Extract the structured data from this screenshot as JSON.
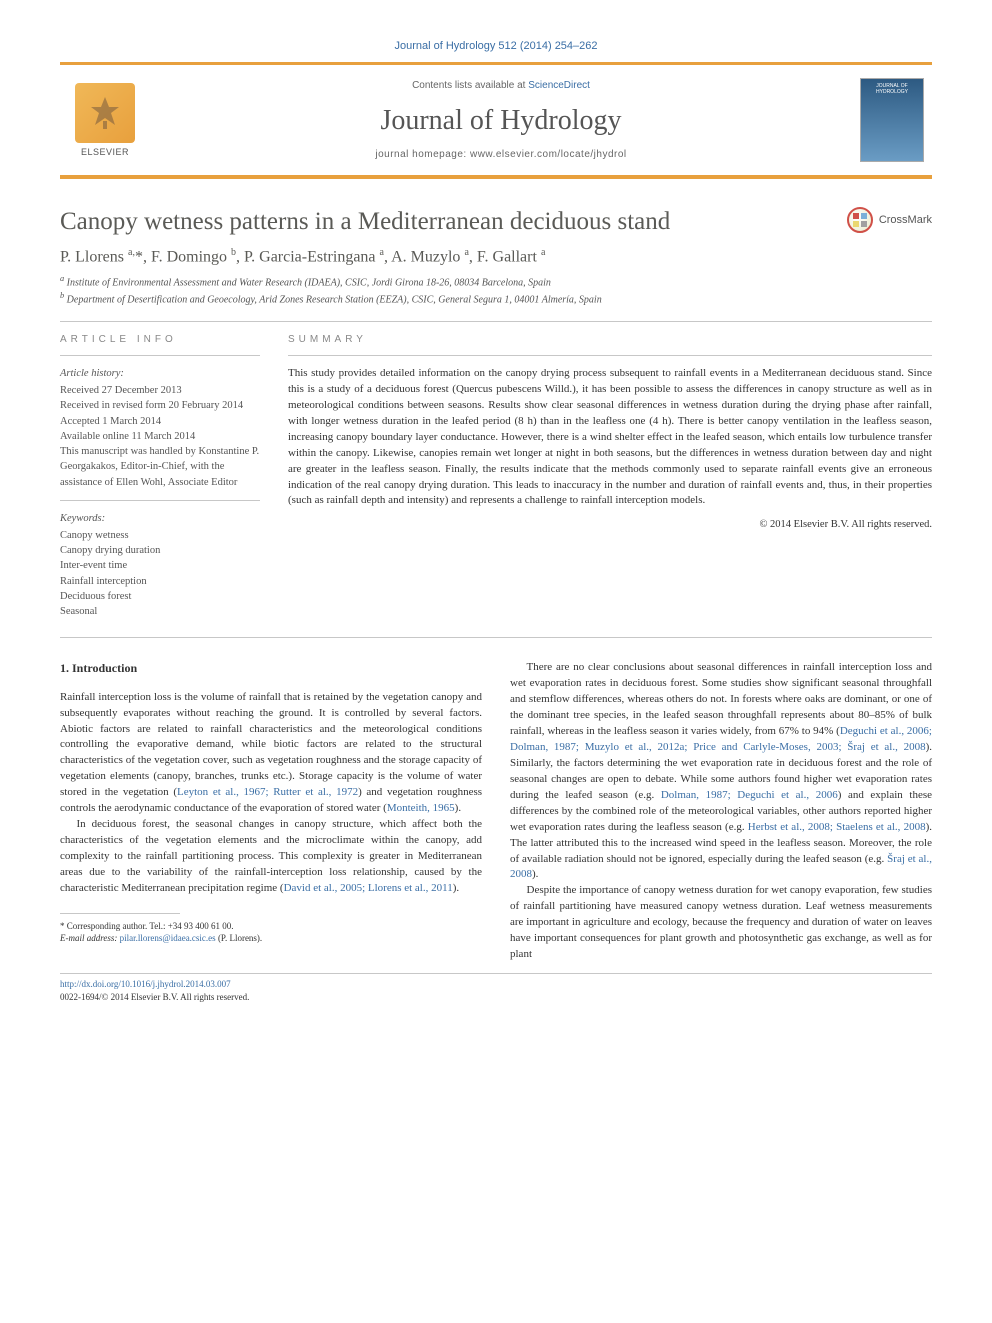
{
  "citation": "Journal of Hydrology 512 (2014) 254–262",
  "header": {
    "contents_prefix": "Contents lists available at ",
    "contents_link": "ScienceDirect",
    "journal_name": "Journal of Hydrology",
    "homepage_prefix": "journal homepage: ",
    "homepage_url": "www.elsevier.com/locate/jhydrol",
    "publisher_name": "ELSEVIER",
    "cover_text": "JOURNAL OF HYDROLOGY"
  },
  "title": "Canopy wetness patterns in a Mediterranean deciduous stand",
  "crossmark_label": "CrossMark",
  "authors_html": "P. Llorens <sup>a,</sup>*, F. Domingo <sup>b</sup>, P. Garcia-Estringana <sup>a</sup>, A. Muzylo <sup>a</sup>, F. Gallart <sup>a</sup>",
  "affiliations": [
    "a Institute of Environmental Assessment and Water Research (IDAEA), CSIC, Jordi Girona 18-26, 08034 Barcelona, Spain",
    "b Department of Desertification and Geoecology, Arid Zones Research Station (EEZA), CSIC, General Segura 1, 04001 Almería, Spain"
  ],
  "article_info": {
    "label": "ARTICLE INFO",
    "history_label": "Article history:",
    "history": [
      "Received 27 December 2013",
      "Received in revised form 20 February 2014",
      "Accepted 1 March 2014",
      "Available online 11 March 2014",
      "This manuscript was handled by Konstantine P. Georgakakos, Editor-in-Chief, with the assistance of Ellen Wohl, Associate Editor"
    ],
    "keywords_label": "Keywords:",
    "keywords": [
      "Canopy wetness",
      "Canopy drying duration",
      "Inter-event time",
      "Rainfall interception",
      "Deciduous forest",
      "Seasonal"
    ]
  },
  "summary": {
    "label": "SUMMARY",
    "text": "This study provides detailed information on the canopy drying process subsequent to rainfall events in a Mediterranean deciduous stand. Since this is a study of a deciduous forest (Quercus pubescens Willd.), it has been possible to assess the differences in canopy structure as well as in meteorological conditions between seasons. Results show clear seasonal differences in wetness duration during the drying phase after rainfall, with longer wetness duration in the leafed period (8 h) than in the leafless one (4 h). There is better canopy ventilation in the leafless season, increasing canopy boundary layer conductance. However, there is a wind shelter effect in the leafed season, which entails low turbulence transfer within the canopy. Likewise, canopies remain wet longer at night in both seasons, but the differences in wetness duration between day and night are greater in the leafless season. Finally, the results indicate that the methods commonly used to separate rainfall events give an erroneous indication of the real canopy drying duration. This leads to inaccuracy in the number and duration of rainfall events and, thus, in their properties (such as rainfall depth and intensity) and represents a challenge to rainfall interception models.",
    "copyright": "© 2014 Elsevier B.V. All rights reserved."
  },
  "body": {
    "intro_heading": "1. Introduction",
    "col1": {
      "p1": "Rainfall interception loss is the volume of rainfall that is retained by the vegetation canopy and subsequently evaporates without reaching the ground. It is controlled by several factors. Abiotic factors are related to rainfall characteristics and the meteorological conditions controlling the evaporative demand, while biotic factors are related to the structural characteristics of the vegetation cover, such as vegetation roughness and the storage capacity of vegetation elements (canopy, branches, trunks etc.). Storage capacity is the volume of water stored in the vegetation (",
      "p1_ref1": "Leyton et al., 1967; Rutter et al., 1972",
      "p1_mid": ") and vegetation roughness controls the aerodynamic conductance of the evaporation of stored water (",
      "p1_ref2": "Monteith, 1965",
      "p1_end": ").",
      "p2": "In deciduous forest, the seasonal changes in canopy structure, which affect both the characteristics of the vegetation elements and the microclimate within the canopy, add complexity to the rainfall partitioning process. This complexity is greater in Mediterranean areas due to the variability of the rainfall-interception loss relationship, caused by the characteristic Mediterranean precipitation regime (",
      "p2_ref": "David et al., 2005; Llorens et al., 2011",
      "p2_end": ")."
    },
    "col2": {
      "p1a": "There are no clear conclusions about seasonal differences in rainfall interception loss and wet evaporation rates in deciduous forest. Some studies show significant seasonal throughfall and stemflow differences, whereas others do not. In forests where oaks are dominant, or one of the dominant tree species, in the leafed season throughfall represents about 80–85% of bulk rainfall, whereas in the leafless season it varies widely, from 67% to 94% (",
      "p1_ref1": "Deguchi et al., 2006; Dolman, 1987; Muzylo et al., 2012a; Price and Carlyle-Moses, 2003; Šraj et al., 2008",
      "p1b": "). Similarly, the factors determining the wet evaporation rate in deciduous forest and the role of seasonal changes are open to debate. While some authors found higher wet evaporation rates during the leafed season (e.g. ",
      "p1_ref2": "Dolman, 1987; Deguchi et al., 2006",
      "p1c": ") and explain these differences by the combined role of the meteorological variables, other authors reported higher wet evaporation rates during the leafless season (e.g. ",
      "p1_ref3": "Herbst et al., 2008; Staelens et al., 2008",
      "p1d": "). The latter attributed this to the increased wind speed in the leafless season. Moreover, the role of available radiation should not be ignored, especially during the leafed season (e.g. ",
      "p1_ref4": "Šraj et al., 2008",
      "p1e": ").",
      "p2": "Despite the importance of canopy wetness duration for wet canopy evaporation, few studies of rainfall partitioning have measured canopy wetness duration. Leaf wetness measurements are important in agriculture and ecology, because the frequency and duration of water on leaves have important consequences for plant growth and photosynthetic gas exchange, as well as for plant"
    }
  },
  "footnotes": {
    "corresponding": "* Corresponding author. Tel.: +34 93 400 61 00.",
    "email_label": "E-mail address: ",
    "email": "pilar.llorens@idaea.csic.es",
    "email_suffix": " (P. Llorens)."
  },
  "doi": {
    "url": "http://dx.doi.org/10.1016/j.jhydrol.2014.03.007",
    "issn_line": "0022-1694/© 2014 Elsevier B.V. All rights reserved."
  },
  "colors": {
    "accent_orange": "#e8a03d",
    "link_blue": "#3a6ea5",
    "heading_gray": "#5a5a56",
    "text": "#333333",
    "rule": "#c7c7c7"
  }
}
